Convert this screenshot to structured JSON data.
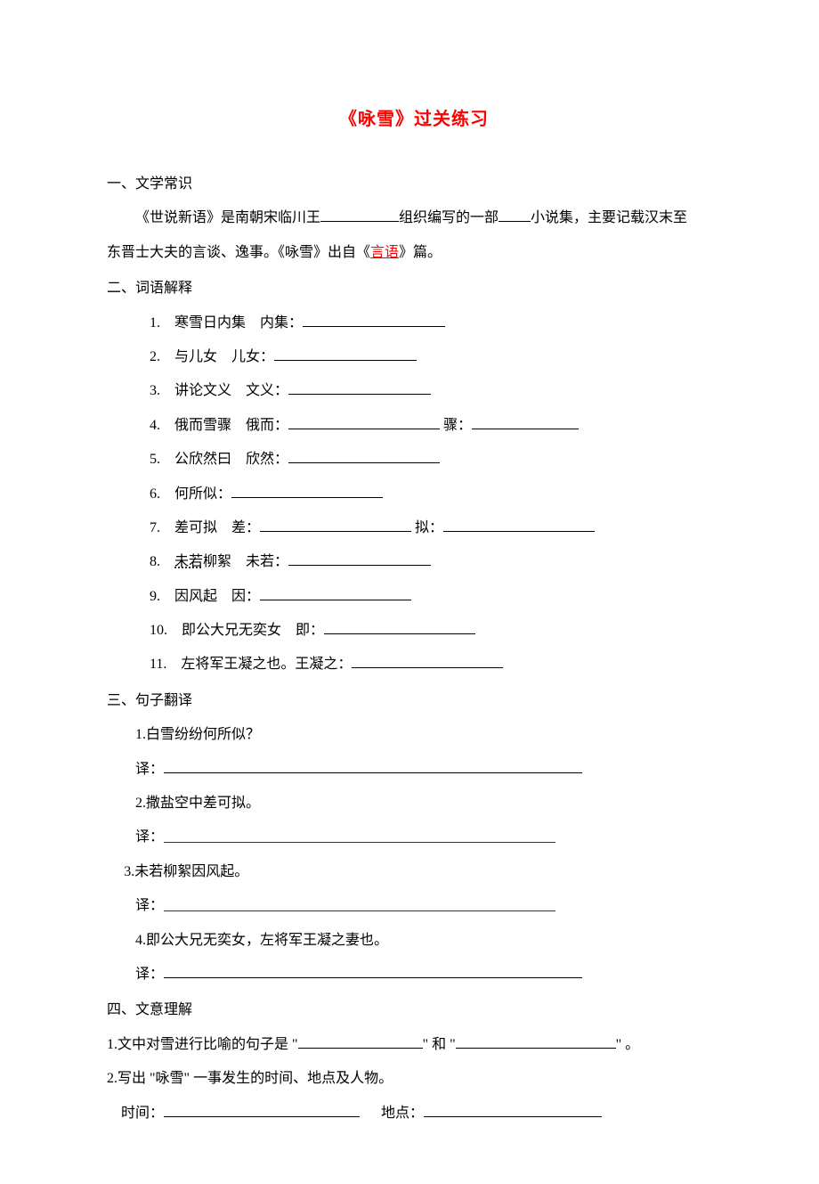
{
  "title": "《咏雪》过关练习",
  "section1": {
    "head": "一、文学常识",
    "p_before": "《世说新语》是南朝宋临川王",
    "p_mid1": "组织编写的一部",
    "p_mid2": "小说集，主要记载汉末至",
    "p_line2_a": "东晋士大夫的言谈、逸事。《咏雪》出自《",
    "p_red": "言语",
    "p_line2_b": "》篇。"
  },
  "section2": {
    "head": "二、词语解释",
    "items": [
      {
        "n": "1.",
        "parts": [
          "寒雪日内集",
          "内集："
        ],
        "blanks": [
          0,
          1
        ],
        "lens": [
          160
        ]
      },
      {
        "n": "2.",
        "parts": [
          "与儿女",
          "儿女："
        ],
        "blanks": [
          0,
          1
        ],
        "lens": [
          160
        ]
      },
      {
        "n": "3.",
        "parts": [
          "讲论文义",
          "文义："
        ],
        "blanks": [
          0,
          1
        ],
        "lens": [
          160
        ]
      },
      {
        "n": "4.",
        "parts": [
          "俄而雪骤",
          "俄而：",
          "骤："
        ],
        "blanks": [
          0,
          1,
          1
        ],
        "lens": [
          170,
          120
        ]
      },
      {
        "n": "5.",
        "parts": [
          "公欣然曰",
          "欣然："
        ],
        "blanks": [
          0,
          1
        ],
        "lens": [
          170
        ]
      },
      {
        "n": "6.",
        "parts": [
          "何所似："
        ],
        "blanks": [
          1
        ],
        "lens": [
          170
        ]
      },
      {
        "n": "7.",
        "parts": [
          "差可拟",
          "差：",
          "拟："
        ],
        "blanks": [
          0,
          1,
          1
        ],
        "lens": [
          170,
          170
        ]
      },
      {
        "n": "8.",
        "parts": [
          "未若柳絮",
          "未若："
        ],
        "blanks": [
          0,
          1
        ],
        "lens": [
          160
        ],
        "dotted": true
      },
      {
        "n": "9.",
        "parts": [
          "因风起",
          "因："
        ],
        "blanks": [
          0,
          1
        ],
        "lens": [
          170
        ]
      },
      {
        "n": "10.",
        "parts": [
          "即公大兄无奕女",
          "即："
        ],
        "blanks": [
          0,
          1
        ],
        "lens": [
          170
        ]
      },
      {
        "n": "11.",
        "parts": [
          "左将军王凝之也。王凝之："
        ],
        "blanks": [
          1
        ],
        "lens": [
          170
        ]
      }
    ]
  },
  "section3": {
    "head": "三、句子翻译",
    "items": [
      {
        "n": "1.",
        "q": "白雪纷纷何所似？",
        "type": "solid"
      },
      {
        "n": "2.",
        "q": "撒盐空中差可拟。",
        "type": "dash"
      },
      {
        "n": "3.",
        "q": "未若柳絮因风起。",
        "type": "dash",
        "outdent": true
      },
      {
        "n": "4.",
        "q": "即公大兄无奕女，左将军王凝之妻也。",
        "type": "solid"
      }
    ],
    "trans_label": "译：",
    "dash_fill": "_______________________________________________________"
  },
  "section4": {
    "head": "四、文意理解",
    "q1_a": "1.文中对雪进行比喻的句子是 \"",
    "q1_b": "\" 和 \"",
    "q1_c": "\" 。",
    "q2": "2.写出 \"咏雪\" 一事发生的时间、地点及人物。",
    "time_label": "时间：",
    "place_label": "地点："
  },
  "style": {
    "blank_q1a": 140,
    "blank_q1b": 180,
    "blank_author": 88,
    "blank_type": 36,
    "blank_time": 220,
    "blank_place": 200,
    "trans_blank": 470
  }
}
